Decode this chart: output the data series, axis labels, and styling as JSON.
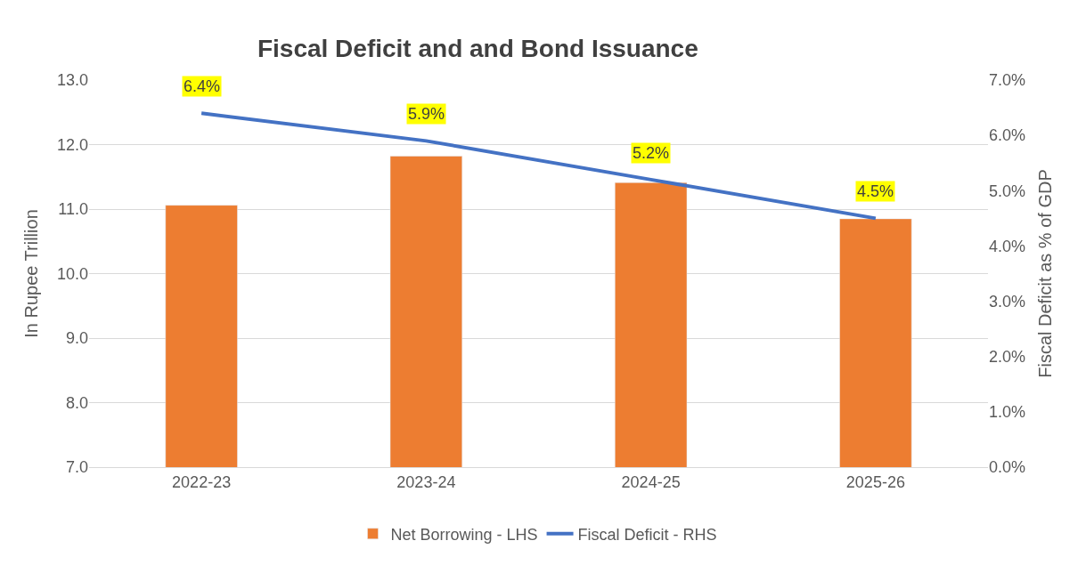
{
  "chart_data": {
    "type": "bar",
    "title": "Fiscal Deficit and and Bond Issuance",
    "ylabel": "In Rupee Trillion",
    "y2label": "Fiscal Deficit as % of GDP",
    "categories": [
      "2022-23",
      "2023-24",
      "2024-25",
      "2025-26"
    ],
    "series": [
      {
        "name": "Net Borrowing - LHS",
        "color": "#ed7d31",
        "values": [
          11.06,
          11.82,
          11.41,
          10.85
        ]
      },
      {
        "name": "Fiscal Deficit - RHS",
        "type": "line",
        "axis": "y2",
        "color": "#4472c4",
        "values": [
          6.4,
          5.9,
          5.2,
          4.5
        ],
        "value_labels": [
          "6.4%",
          "5.9%",
          "5.2%",
          "4.5%"
        ],
        "marker": "none",
        "line_style": "solid"
      }
    ],
    "ylim": [
      7,
      13
    ],
    "yticks": [
      {
        "value": 7,
        "label": "7.0"
      },
      {
        "value": 8,
        "label": "8.0"
      },
      {
        "value": 9,
        "label": "9.0"
      },
      {
        "value": 10,
        "label": "10.0"
      },
      {
        "value": 11,
        "label": "11.0"
      },
      {
        "value": 12,
        "label": "12.0"
      },
      {
        "value": 13,
        "label": "13.0"
      }
    ],
    "y2lim": [
      0,
      7
    ],
    "y2ticks": [
      {
        "value": 0,
        "label": "0.0%"
      },
      {
        "value": 1,
        "label": "1.0%"
      },
      {
        "value": 2,
        "label": "2.0%"
      },
      {
        "value": 3,
        "label": "3.0%"
      },
      {
        "value": 4,
        "label": "4.0%"
      },
      {
        "value": 5,
        "label": "5.0%"
      },
      {
        "value": 6,
        "label": "6.0%"
      },
      {
        "value": 7,
        "label": "7.0%"
      }
    ],
    "grid": "y",
    "legend": "bottom"
  }
}
